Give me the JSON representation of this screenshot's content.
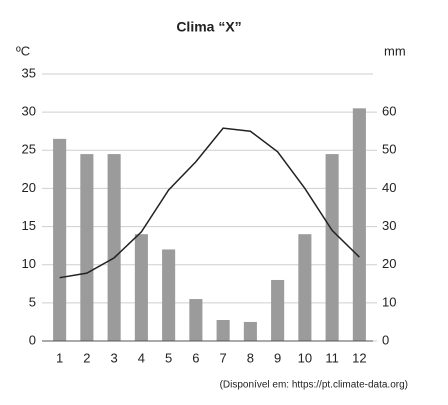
{
  "chart_data": {
    "type": "combo",
    "title": "Clima “X”",
    "y_label": "ºC",
    "y2_label": "mm",
    "source": "(Disponível em: https://pt.climate-data.org)",
    "categories": [
      "1",
      "2",
      "3",
      "4",
      "5",
      "6",
      "7",
      "8",
      "9",
      "10",
      "11",
      "12"
    ],
    "series": [
      {
        "type": "bar",
        "axis": "y2",
        "color": "#9b9b9b",
        "values": [
          53,
          49,
          49,
          28,
          24,
          11,
          5.5,
          5,
          16,
          28,
          49,
          61
        ]
      },
      {
        "type": "line",
        "axis": "y",
        "color": "#222222",
        "values": [
          8.3,
          8.9,
          10.9,
          14.3,
          19.8,
          23.5,
          27.9,
          27.5,
          24.8,
          20,
          14.5,
          11
        ]
      }
    ],
    "ylim": [
      0,
      35
    ],
    "yticks": [
      0,
      5,
      10,
      15,
      20,
      25,
      30,
      35
    ],
    "y2lim": [
      0,
      70
    ],
    "y2ticks": [
      0,
      10,
      20,
      30,
      40,
      50,
      60
    ],
    "grid": true
  }
}
